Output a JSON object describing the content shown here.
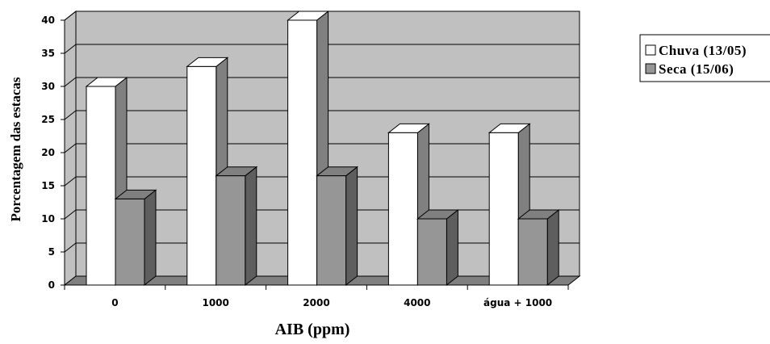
{
  "chart_data": {
    "type": "bar",
    "categories": [
      "0",
      "1000",
      "2000",
      "4000",
      "água + 1000"
    ],
    "series": [
      {
        "name": "Chuva (13/05)",
        "values": [
          30,
          33,
          40,
          23,
          23
        ],
        "color": "#ffffff"
      },
      {
        "name": "Seca (15/06)",
        "values": [
          13,
          16.5,
          16.5,
          10,
          10
        ],
        "color": "#969696"
      }
    ],
    "xlabel": "AIB (ppm)",
    "ylabel": "Porcentagem  das estacas",
    "ylim": [
      0,
      40
    ],
    "yticks": [
      0,
      5,
      10,
      15,
      20,
      25,
      30,
      35,
      40
    ],
    "grid": true,
    "legend_position": "top-right",
    "wall_color": "#c0c0c0",
    "three_d": true
  }
}
